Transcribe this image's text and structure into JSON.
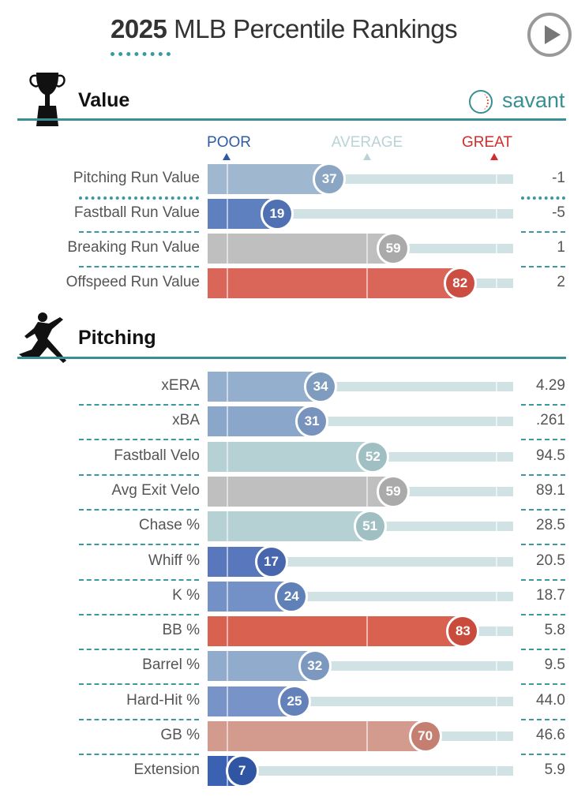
{
  "header": {
    "year": "2025",
    "title": "MLB Percentile Rankings"
  },
  "brand": "savant",
  "scale": {
    "poor": "POOR",
    "average": "AVERAGE",
    "great": "GREAT",
    "poor_color": "#2f5aa8",
    "average_color": "#b9d3d6",
    "great_color": "#d22d2d"
  },
  "chart_data": {
    "type": "bar",
    "title": "2025 MLB Percentile Rankings",
    "xlim": [
      0,
      100
    ],
    "sections": [
      {
        "title": "Value",
        "rows": [
          {
            "label": "Pitching Run Value",
            "percentile": 37,
            "value": "-1",
            "color": "#9fb8cf",
            "dark": "#8aa6c2"
          },
          {
            "label": "Fastball Run Value",
            "percentile": 19,
            "value": "-5",
            "color": "#5f80bf",
            "dark": "#4f70b2"
          },
          {
            "label": "Breaking Run Value",
            "percentile": 59,
            "value": "1",
            "color": "#bfbfbf",
            "dark": "#aaaaaa"
          },
          {
            "label": "Offspeed Run Value",
            "percentile": 82,
            "value": "2",
            "color": "#da6559",
            "dark": "#cc4e42"
          }
        ]
      },
      {
        "title": "Pitching",
        "rows": [
          {
            "label": "xERA",
            "percentile": 34,
            "value": "4.29",
            "color": "#94aecd",
            "dark": "#7f9cbf"
          },
          {
            "label": "xBA",
            "percentile": 31,
            "value": ".261",
            "color": "#8ba6cb",
            "dark": "#7893bd"
          },
          {
            "label": "Fastball Velo",
            "percentile": 52,
            "value": "94.5",
            "color": "#b5d1d4",
            "dark": "#9fbfc3"
          },
          {
            "label": "Avg Exit Velo",
            "percentile": 59,
            "value": "89.1",
            "color": "#bfbfbf",
            "dark": "#aaaaaa"
          },
          {
            "label": "Chase %",
            "percentile": 51,
            "value": "28.5",
            "color": "#b5d1d4",
            "dark": "#9fbfc3"
          },
          {
            "label": "Whiff %",
            "percentile": 17,
            "value": "20.5",
            "color": "#5877bc",
            "dark": "#4866ad"
          },
          {
            "label": "K %",
            "percentile": 24,
            "value": "18.7",
            "color": "#7391c6",
            "dark": "#6080b8"
          },
          {
            "label": "BB %",
            "percentile": 83,
            "value": "5.8",
            "color": "#d96150",
            "dark": "#c94b3b"
          },
          {
            "label": "Barrel %",
            "percentile": 32,
            "value": "9.5",
            "color": "#90abcc",
            "dark": "#7c98bf"
          },
          {
            "label": "Hard-Hit %",
            "percentile": 25,
            "value": "44.0",
            "color": "#7893c8",
            "dark": "#6581ba"
          },
          {
            "label": "GB %",
            "percentile": 70,
            "value": "46.6",
            "color": "#d39b8e",
            "dark": "#c47f70"
          },
          {
            "label": "Extension",
            "percentile": 7,
            "value": "5.9",
            "color": "#3b62b2",
            "dark": "#2f55a3"
          }
        ]
      }
    ]
  }
}
